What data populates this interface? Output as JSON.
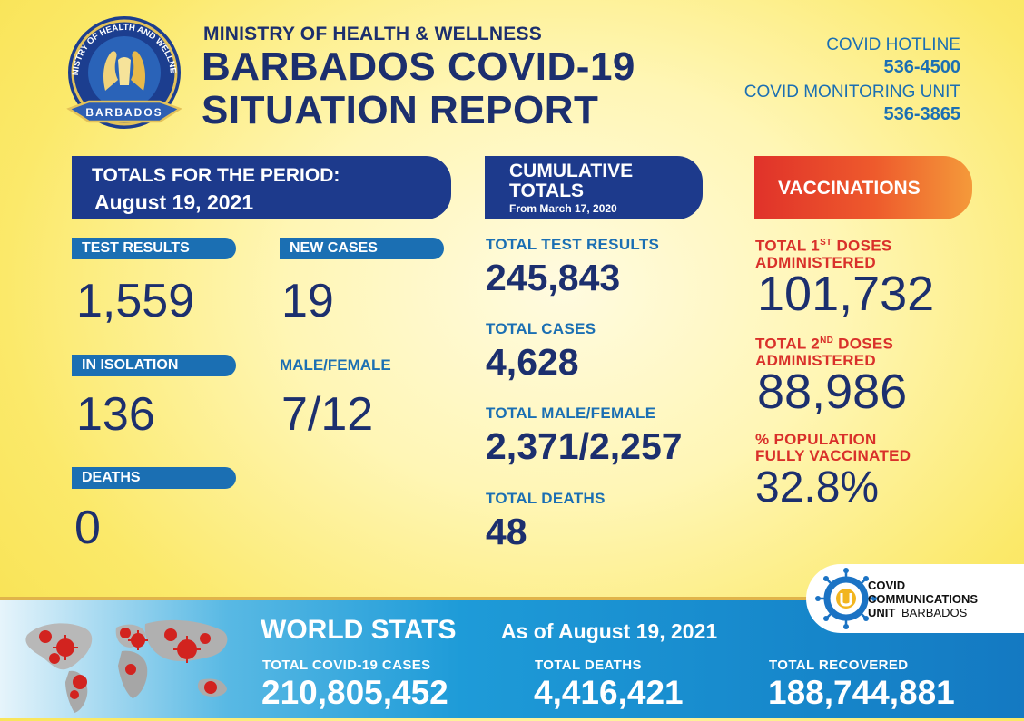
{
  "header": {
    "seal_text_top": "MINISTRY OF HEALTH AND WELLNESS",
    "seal_text_bottom": "BARBADOS",
    "ministry": "MINISTRY OF HEALTH & WELLNESS",
    "title_line1": "BARBADOS COVID-19",
    "title_line2": "SITUATION REPORT",
    "hotline_label": "COVID HOTLINE",
    "hotline_number": "536-4500",
    "monitoring_label": "COVID MONITORING UNIT",
    "monitoring_number": "536-3865"
  },
  "period": {
    "heading": "TOTALS FOR THE PERIOD:",
    "date": "August 19, 2021",
    "test_results_label": "TEST RESULTS",
    "test_results_value": "1,559",
    "new_cases_label": "NEW CASES",
    "new_cases_value": "19",
    "in_isolation_label": "IN ISOLATION",
    "in_isolation_value": "136",
    "male_female_label": "MALE/FEMALE",
    "male_female_value": "7/12",
    "deaths_label": "DEATHS",
    "deaths_value": "0"
  },
  "cumulative": {
    "heading_line1": "CUMULATIVE",
    "heading_line2": "TOTALS",
    "heading_line3": "From March 17, 2020",
    "test_results_label": "TOTAL TEST RESULTS",
    "test_results_value": "245,843",
    "cases_label": "TOTAL CASES",
    "cases_value": "4,628",
    "male_female_label": "TOTAL MALE/FEMALE",
    "male_female_value": "2,371/2,257",
    "deaths_label": "TOTAL DEATHS",
    "deaths_value": "48"
  },
  "vaccinations": {
    "heading": "VACCINATIONS",
    "first_doses_label_a": "TOTAL 1",
    "first_doses_label_sup": "ST",
    "first_doses_label_b": " DOSES",
    "first_doses_label_line2": "ADMINISTERED",
    "first_doses_value": "101,732",
    "second_doses_label_a": "TOTAL 2",
    "second_doses_label_sup": "ND",
    "second_doses_label_b": " DOSES",
    "second_doses_label_line2": "ADMINISTERED",
    "second_doses_value": "88,986",
    "pct_label_line1": "% POPULATION",
    "pct_label_line2": "FULLY VACCINATED",
    "pct_value": "32.8%"
  },
  "world": {
    "title": "WORLD STATS",
    "as_of": "As of August 19, 2021",
    "cases_label": "TOTAL COVID-19 CASES",
    "cases_value": "210,805,452",
    "deaths_label": "TOTAL DEATHS",
    "deaths_value": "4,416,421",
    "recovered_label": "TOTAL RECOVERED",
    "recovered_value": "188,744,881"
  },
  "ccu": {
    "line1": "COVID",
    "line2": "COMMUNICATIONS",
    "line3_bold": "UNIT",
    "line3_regular": "BARBADOS"
  },
  "colors": {
    "navy": "#1c2f6e",
    "header_blue": "#1d3a8c",
    "label_blue": "#1b6fb3",
    "vax_red": "#d9302a",
    "background_yellow": "#fbe96a"
  }
}
